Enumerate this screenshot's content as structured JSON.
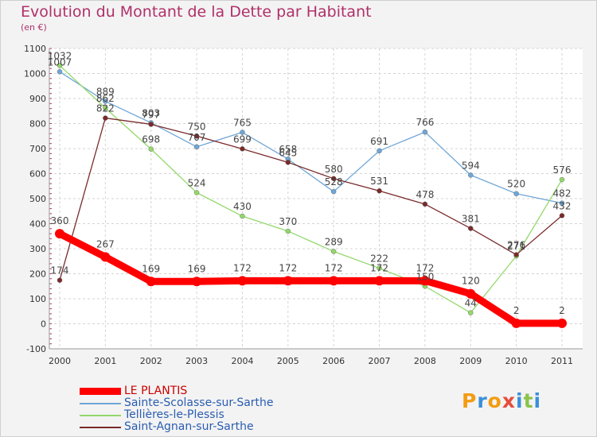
{
  "title": "Evolution du Montant de la Dette par Habitant",
  "unit_label": "(en €)",
  "logo": {
    "text": "Proxiti",
    "colors": [
      "#f39c12",
      "#3a8fd8",
      "#f39c12",
      "#e74c3c",
      "#3a8fd8",
      "#8bc34a",
      "#3a8fd8"
    ]
  },
  "chart_data": {
    "type": "line",
    "title": "Evolution du Montant de la Dette par Habitant",
    "ylabel": "(en €)",
    "xlabel": "",
    "x": [
      "2000",
      "2001",
      "2002",
      "2003",
      "2004",
      "2005",
      "2006",
      "2007",
      "2008",
      "2009",
      "2010",
      "2011"
    ],
    "ylim": [
      -100,
      1100
    ],
    "yticks": [
      -100,
      0,
      100,
      200,
      300,
      400,
      500,
      600,
      700,
      800,
      900,
      1000,
      1100
    ],
    "grid": true,
    "legend_position": "bottom-left",
    "series": [
      {
        "name": "LE PLANTIS",
        "color": "#ff0000",
        "thick": true,
        "values": [
          360,
          267,
          169,
          169,
          172,
          172,
          172,
          172,
          172,
          120,
          2,
          2
        ]
      },
      {
        "name": "Sainte-Scolasse-sur-Sarthe",
        "color": "#6fa6d6",
        "values": [
          1007,
          889,
          803,
          707,
          765,
          658,
          528,
          691,
          766,
          594,
          520,
          482
        ]
      },
      {
        "name": "Tellières-le-Plessis",
        "color": "#93d86a",
        "values": [
          1032,
          862,
          698,
          524,
          430,
          370,
          289,
          222,
          150,
          44,
          271,
          576
        ]
      },
      {
        "name": "Saint-Agnan-sur-Sarthe",
        "color": "#7a2a2a",
        "values": [
          174,
          822,
          797,
          750,
          699,
          645,
          580,
          531,
          478,
          381,
          276,
          432
        ]
      }
    ]
  }
}
